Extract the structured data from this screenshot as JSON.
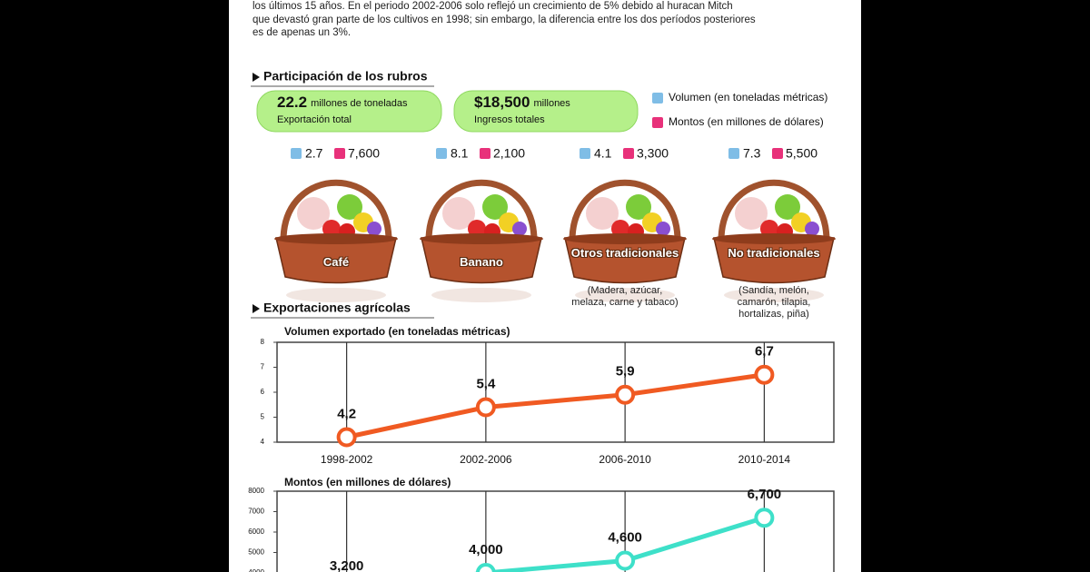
{
  "intro": {
    "lines": [
      "los últimos 15 años. En el periodo 2002-2006 solo reflejó un crecimiento de 5% debido al huracan Mitch",
      "que devastó gran parte de los cultivos en 1998; sin embargo, la diferencia entre los dos períodos posteriores",
      "es de apenas un 3%."
    ]
  },
  "participacion": {
    "title": "Participación de los rubros",
    "totals": [
      {
        "value": "22.2",
        "unit": "millones de toneladas",
        "label": "Exportación total"
      },
      {
        "value": "$18,500",
        "unit": "millones",
        "label": "Ingresos totales"
      }
    ],
    "legend": [
      {
        "label": "Volumen (en toneladas métricas)",
        "color": "#7fbde6"
      },
      {
        "label": "Montos (en millones de dólares)",
        "color": "#e8317a"
      }
    ],
    "rubros": [
      {
        "volumen": "2.7",
        "monto": "7,600",
        "name": "Café"
      },
      {
        "volumen": "8.1",
        "monto": "2,100",
        "name": "Banano"
      },
      {
        "volumen": "4.1",
        "monto": "3,300",
        "name": "Otros tradicionales",
        "note": "(Madera, azúcar, melaza, carne y tabaco)"
      },
      {
        "volumen": "7.3",
        "monto": "5,500",
        "name": "No tradicionales",
        "note": "(Sandía, melón, camarón, tilapia, hortalizas, piña)"
      }
    ]
  },
  "exportaciones": {
    "title": "Exportaciones agrícolas"
  },
  "chart_data": [
    {
      "type": "line",
      "title": "Volumen exportado (en toneladas métricas)",
      "categories": [
        "1998-2002",
        "2002-2006",
        "2006-2010",
        "2010-2014"
      ],
      "values": [
        4.2,
        5.4,
        5.9,
        6.7
      ],
      "value_labels": [
        "4,2",
        "5,4",
        "5,9",
        "6,7"
      ],
      "color": "#f05a22",
      "ylim": [
        4,
        8
      ],
      "yticks": [
        4,
        5,
        6,
        7,
        8
      ]
    },
    {
      "type": "line",
      "title": "Montos (en millones de dólares)",
      "values": [
        3200,
        4000,
        4600,
        6700
      ],
      "value_labels": [
        "3,200",
        "4,000",
        "4,600",
        "6,700"
      ],
      "color": "#3ee0c9",
      "ylim": [
        3000,
        8000
      ],
      "yticks": [
        4000,
        5000,
        6000,
        7000,
        8000
      ]
    }
  ]
}
